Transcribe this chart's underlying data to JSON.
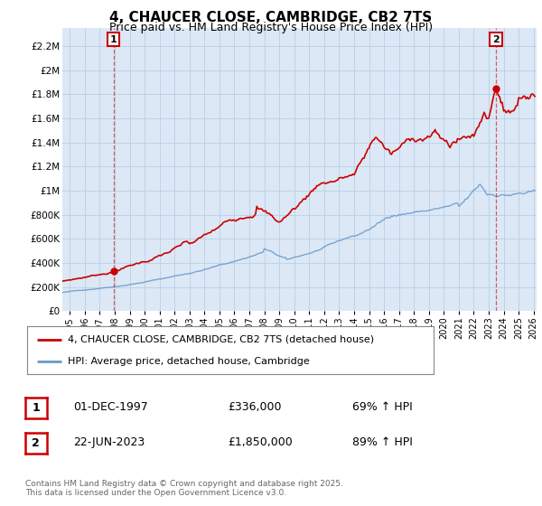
{
  "title": "4, CHAUCER CLOSE, CAMBRIDGE, CB2 7TS",
  "subtitle": "Price paid vs. HM Land Registry's House Price Index (HPI)",
  "bg_color": "#ffffff",
  "plot_bg_color": "#dce8f5",
  "grid_color": "#b8cfe8",
  "red_color": "#cc0000",
  "blue_color": "#6699cc",
  "sale1_date_num": 1997.92,
  "sale1_price": 336000,
  "sale1_label": "1",
  "sale2_date_num": 2023.48,
  "sale2_price": 1850000,
  "sale2_label": "2",
  "xmin": 1994.5,
  "xmax": 2026.2,
  "ymin": 0,
  "ymax": 2350000,
  "yticks": [
    0,
    200000,
    400000,
    600000,
    800000,
    1000000,
    1200000,
    1400000,
    1600000,
    1800000,
    2000000,
    2200000
  ],
  "ytick_labels": [
    "£0",
    "£200K",
    "£400K",
    "£600K",
    "£800K",
    "£1M",
    "£1.2M",
    "£1.4M",
    "£1.6M",
    "£1.8M",
    "£2M",
    "£2.2M"
  ],
  "xticks": [
    1995,
    1996,
    1997,
    1998,
    1999,
    2000,
    2001,
    2002,
    2003,
    2004,
    2005,
    2006,
    2007,
    2008,
    2009,
    2010,
    2011,
    2012,
    2013,
    2014,
    2015,
    2016,
    2017,
    2018,
    2019,
    2020,
    2021,
    2022,
    2023,
    2024,
    2025,
    2026
  ],
  "legend_line1": "4, CHAUCER CLOSE, CAMBRIDGE, CB2 7TS (detached house)",
  "legend_line2": "HPI: Average price, detached house, Cambridge",
  "table_row1": [
    "1",
    "01-DEC-1997",
    "£336,000",
    "69% ↑ HPI"
  ],
  "table_row2": [
    "2",
    "22-JUN-2023",
    "£1,850,000",
    "89% ↑ HPI"
  ],
  "footer": "Contains HM Land Registry data © Crown copyright and database right 2025.\nThis data is licensed under the Open Government Licence v3.0.",
  "dashed_line1_x": 1997.92,
  "dashed_line2_x": 2023.48
}
